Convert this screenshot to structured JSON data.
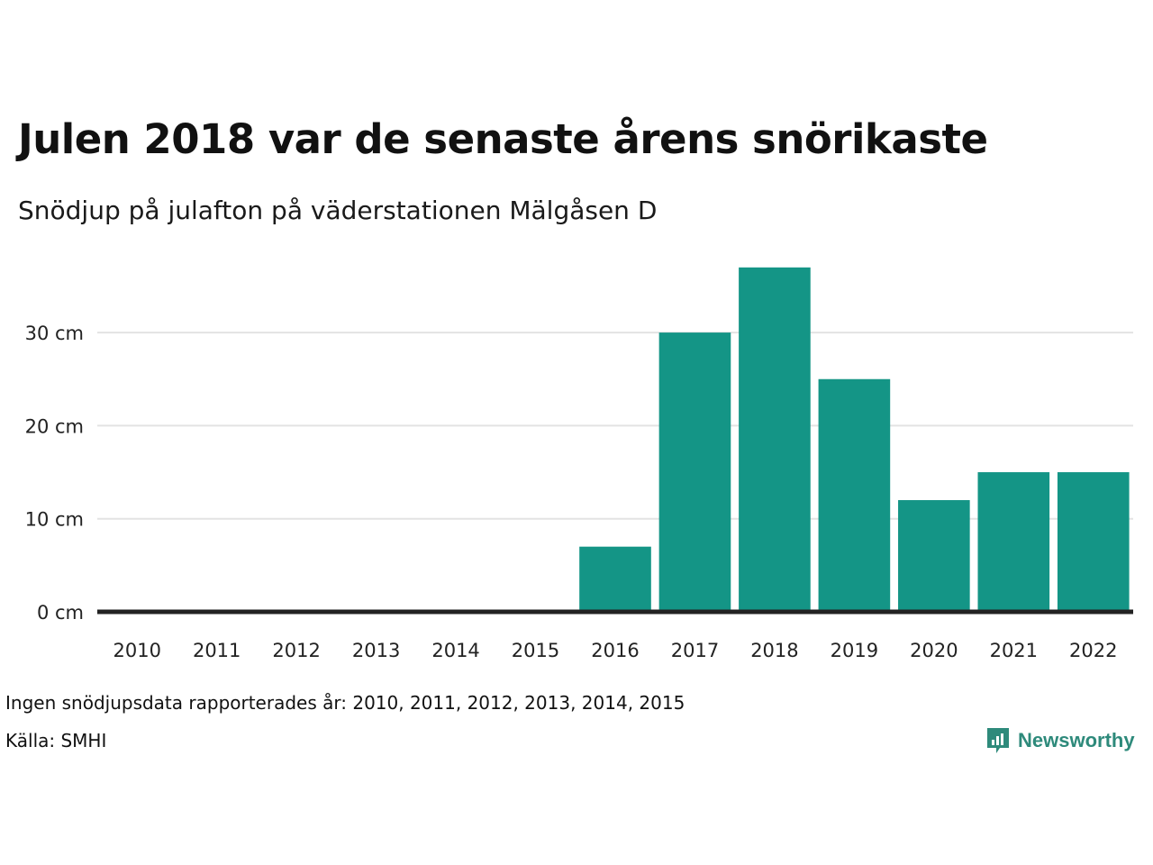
{
  "title": "Julen 2018 var de senaste årens snörikaste",
  "subtitle": "Snödjup på julafton på väderstationen Mälgåsen D",
  "note": "Ingen snödjupsdata rapporterades år: 2010, 2011, 2012, 2013, 2014, 2015",
  "source": "Källa: SMHI",
  "brand": {
    "name": "Newsworthy",
    "icon": "newsworthy-logo-icon",
    "color": "#2e8a7b"
  },
  "colors": {
    "bar": "#149586",
    "grid": "#e3e3e3",
    "baseline": "#222222"
  },
  "chart_data": {
    "type": "bar",
    "title": "Julen 2018 var de senaste årens snörikaste",
    "subtitle": "Snödjup på julafton på väderstationen Mälgåsen D",
    "categories": [
      "2010",
      "2011",
      "2012",
      "2013",
      "2014",
      "2015",
      "2016",
      "2017",
      "2018",
      "2019",
      "2020",
      "2021",
      "2022"
    ],
    "values": [
      0,
      0,
      0,
      0,
      0,
      0,
      7,
      30,
      37,
      25,
      12,
      15,
      15
    ],
    "ylim": [
      0,
      40
    ],
    "yticks": [
      0,
      10,
      20,
      30
    ],
    "ytick_labels": [
      "0 cm",
      "10 cm",
      "20 cm",
      "30 cm"
    ],
    "grid": true
  }
}
